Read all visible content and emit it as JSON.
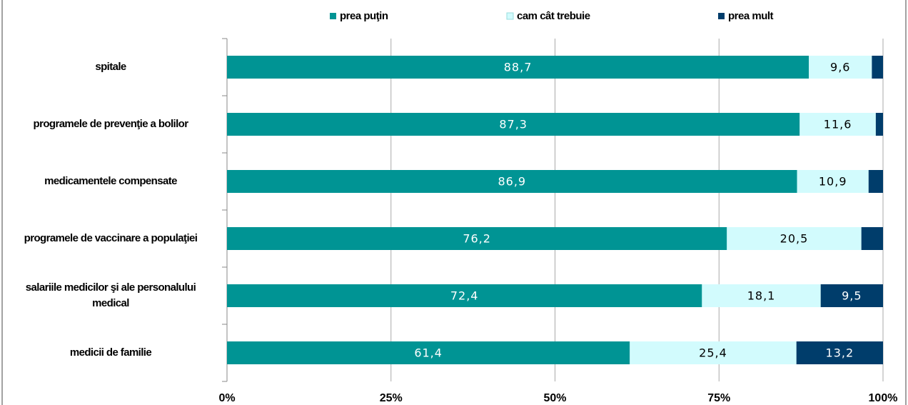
{
  "chart_data": {
    "type": "stacked-barh",
    "categories": [
      "spitale",
      "programele de prevenţie a bolilor",
      "medicamentele compensate",
      "programele de vaccinare a populaţiei",
      "salariile medicilor şi ale personalului medical",
      "medicii de familie"
    ],
    "series": [
      {
        "name": "prea puţin",
        "color": "#009494",
        "values": [
          88.7,
          87.3,
          86.9,
          76.2,
          72.4,
          61.4
        ],
        "value_labels": [
          "88,7",
          "87,3",
          "86,9",
          "76,2",
          "72,4",
          "61,4"
        ]
      },
      {
        "name": "cam cât trebuie",
        "color": "#d2fbfd",
        "values": [
          9.6,
          11.6,
          10.9,
          20.5,
          18.1,
          25.4
        ],
        "value_labels": [
          "9,6",
          "11,6",
          "10,9",
          "20,5",
          "18,1",
          "25,4"
        ]
      },
      {
        "name": "prea mult",
        "color": "#003d6b",
        "values": [
          1.7,
          1.1,
          2.2,
          3.3,
          9.5,
          13.2
        ],
        "value_labels": [
          null,
          null,
          null,
          null,
          "9,5",
          "13,2"
        ]
      }
    ],
    "xlim": [
      0,
      100
    ],
    "xticks": [
      {
        "value": 0,
        "label": "0%"
      },
      {
        "value": 25,
        "label": "25%"
      },
      {
        "value": 50,
        "label": "50%"
      },
      {
        "value": 75,
        "label": "75%"
      },
      {
        "value": 100,
        "label": "100%"
      }
    ],
    "grid": true,
    "legend": "top"
  }
}
